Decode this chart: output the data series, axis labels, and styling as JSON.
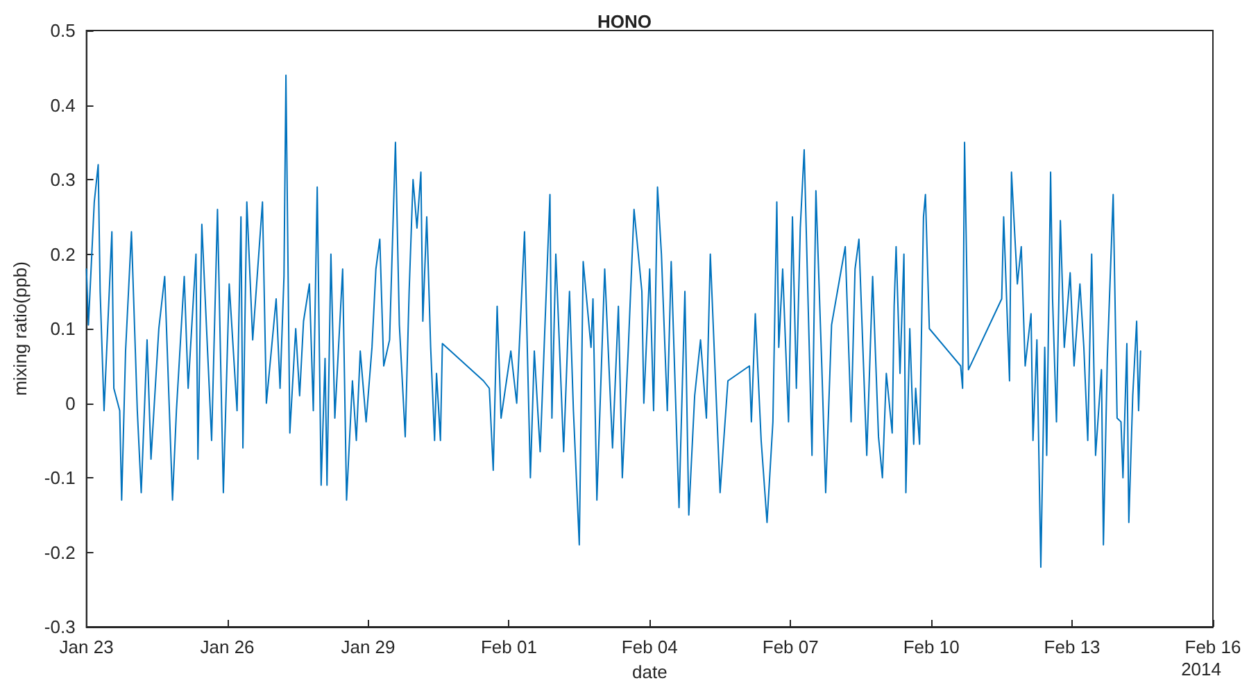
{
  "chart_data": {
    "type": "line",
    "title": "HONO",
    "xlabel": "date",
    "ylabel": "mixing ratio(ppb)",
    "annotations": [
      "2014"
    ],
    "x": [
      "2014-01-23T00:00",
      "2014-01-23T01:00",
      "2014-01-23T04:00",
      "2014-01-23T06:00",
      "2014-01-23T07:00",
      "2014-01-23T09:00",
      "2014-01-23T13:00",
      "2014-01-23T14:00",
      "2014-01-23T17:00",
      "2014-01-23T18:00",
      "2014-01-23T20:00",
      "2014-01-23T23:00",
      "2014-01-24T02:00",
      "2014-01-24T04:00",
      "2014-01-24T07:00",
      "2014-01-24T09:00",
      "2014-01-24T13:00",
      "2014-01-24T16:00",
      "2014-01-24T20:00",
      "2014-01-24T22:00",
      "2014-01-25T02:00",
      "2014-01-25T04:00",
      "2014-01-25T08:00",
      "2014-01-25T09:00",
      "2014-01-25T11:00",
      "2014-01-25T16:00",
      "2014-01-25T19:00",
      "2014-01-25T22:00",
      "2014-01-26T01:00",
      "2014-01-26T05:00",
      "2014-01-26T07:00",
      "2014-01-26T08:00",
      "2014-01-26T10:00",
      "2014-01-26T13:00",
      "2014-01-26T18:00",
      "2014-01-26T20:00",
      "2014-01-27T01:00",
      "2014-01-27T03:00",
      "2014-01-27T05:00",
      "2014-01-27T06:00",
      "2014-01-27T08:00",
      "2014-01-27T11:00",
      "2014-01-27T13:00",
      "2014-01-27T15:00",
      "2014-01-27T18:00",
      "2014-01-27T20:00",
      "2014-01-27T22:00",
      "2014-01-28T00:00",
      "2014-01-28T02:00",
      "2014-01-28T03:00",
      "2014-01-28T05:00",
      "2014-01-28T07:00",
      "2014-01-28T11:00",
      "2014-01-28T13:00",
      "2014-01-28T16:00",
      "2014-01-28T18:00",
      "2014-01-28T20:00",
      "2014-01-28T23:00",
      "2014-01-29T02:00",
      "2014-01-29T04:00",
      "2014-01-29T06:00",
      "2014-01-29T08:00",
      "2014-01-29T11:00",
      "2014-01-29T14:00",
      "2014-01-29T16:00",
      "2014-01-29T19:00",
      "2014-01-29T21:00",
      "2014-01-29T23:00",
      "2014-01-30T01:00",
      "2014-01-30T03:00",
      "2014-01-30T04:00",
      "2014-01-30T06:00",
      "2014-01-30T08:00",
      "2014-01-30T10:00",
      "2014-01-30T11:00",
      "2014-01-30T13:00",
      "2014-01-30T14:00",
      "2014-01-31T11:00",
      "2014-01-31T14:00",
      "2014-01-31T16:00",
      "2014-01-31T18:00",
      "2014-01-31T20:00",
      "2014-02-01T01:00",
      "2014-02-01T04:00",
      "2014-02-01T08:00",
      "2014-02-01T11:00",
      "2014-02-01T13:00",
      "2014-02-01T16:00",
      "2014-02-01T21:00",
      "2014-02-01T22:00",
      "2014-02-02T00:00",
      "2014-02-02T04:00",
      "2014-02-02T07:00",
      "2014-02-02T09:00",
      "2014-02-02T12:00",
      "2014-02-02T14:00",
      "2014-02-02T18:00",
      "2014-02-02T19:00",
      "2014-02-02T21:00",
      "2014-02-03T01:00",
      "2014-02-03T05:00",
      "2014-02-03T08:00",
      "2014-02-03T10:00",
      "2014-02-03T13:00",
      "2014-02-03T16:00",
      "2014-02-03T20:00",
      "2014-02-03T21:00",
      "2014-02-04T00:00",
      "2014-02-04T02:00",
      "2014-02-04T04:00",
      "2014-02-04T06:00",
      "2014-02-04T09:00",
      "2014-02-04T11:00",
      "2014-02-04T15:00",
      "2014-02-04T18:00",
      "2014-02-04T20:00",
      "2014-02-04T23:00",
      "2014-02-05T02:00",
      "2014-02-05T05:00",
      "2014-02-05T07:00",
      "2014-02-05T12:00",
      "2014-02-05T16:00",
      "2014-02-06T03:00",
      "2014-02-06T04:00",
      "2014-02-06T06:00",
      "2014-02-06T09:00",
      "2014-02-06T12:00",
      "2014-02-06T15:00",
      "2014-02-06T17:00",
      "2014-02-06T18:00",
      "2014-02-06T20:00",
      "2014-02-06T23:00",
      "2014-02-07T01:00",
      "2014-02-07T03:00",
      "2014-02-07T05:00",
      "2014-02-07T07:00",
      "2014-02-07T11:00",
      "2014-02-07T13:00",
      "2014-02-07T16:00",
      "2014-02-07T18:00",
      "2014-02-07T21:00",
      "2014-02-08T04:00",
      "2014-02-08T07:00",
      "2014-02-08T09:00",
      "2014-02-08T11:00",
      "2014-02-08T13:00",
      "2014-02-08T15:00",
      "2014-02-08T18:00",
      "2014-02-08T21:00",
      "2014-02-08T23:00",
      "2014-02-09T01:00",
      "2014-02-09T04:00",
      "2014-02-09T05:00",
      "2014-02-09T06:00",
      "2014-02-09T08:00",
      "2014-02-09T10:00",
      "2014-02-09T11:00",
      "2014-02-09T13:00",
      "2014-02-09T15:00",
      "2014-02-09T16:00",
      "2014-02-09T18:00",
      "2014-02-09T20:00",
      "2014-02-09T21:00",
      "2014-02-09T23:00",
      "2014-02-10T15:00",
      "2014-02-10T16:00",
      "2014-02-10T17:00",
      "2014-02-10T19:00",
      "2014-02-11T12:00",
      "2014-02-11T13:00",
      "2014-02-11T16:00",
      "2014-02-11T17:00",
      "2014-02-11T20:00",
      "2014-02-11T22:00",
      "2014-02-12T00:00",
      "2014-02-12T03:00",
      "2014-02-12T04:00",
      "2014-02-12T06:00",
      "2014-02-12T08:00",
      "2014-02-12T10:00",
      "2014-02-12T11:00",
      "2014-02-12T13:00",
      "2014-02-12T14:00",
      "2014-02-12T16:00",
      "2014-02-12T18:00",
      "2014-02-12T20:00",
      "2014-02-12T23:00",
      "2014-02-13T01:00",
      "2014-02-13T04:00",
      "2014-02-13T06:00",
      "2014-02-13T08:00",
      "2014-02-13T10:00",
      "2014-02-13T12:00",
      "2014-02-13T15:00",
      "2014-02-13T16:00",
      "2014-02-13T18:00",
      "2014-02-13T21:00",
      "2014-02-13T23:00",
      "2014-02-14T01:00",
      "2014-02-14T02:00",
      "2014-02-14T04:00",
      "2014-02-14T05:00",
      "2014-02-14T07:00",
      "2014-02-14T09:00",
      "2014-02-14T10:00",
      "2014-02-14T11:00"
    ],
    "series": [
      {
        "color": "#0072bd",
        "values": [
          0.18,
          0.105,
          0.27,
          0.32,
          0.15,
          -0.01,
          0.23,
          0.02,
          -0.01,
          -0.13,
          0.07,
          0.23,
          -0.01,
          -0.12,
          0.085,
          -0.075,
          0.1,
          0.17,
          -0.13,
          -0.01,
          0.17,
          0.02,
          0.2,
          -0.075,
          0.24,
          -0.05,
          0.26,
          -0.12,
          0.16,
          -0.01,
          0.25,
          -0.06,
          0.27,
          0.085,
          0.27,
          0.0,
          0.14,
          0.02,
          0.17,
          0.44,
          -0.04,
          0.1,
          0.01,
          0.11,
          0.16,
          -0.01,
          0.29,
          -0.11,
          0.06,
          -0.11,
          0.2,
          -0.02,
          0.18,
          -0.13,
          0.03,
          -0.05,
          0.07,
          -0.025,
          0.075,
          0.18,
          0.22,
          0.05,
          0.085,
          0.35,
          0.105,
          -0.045,
          0.15,
          0.3,
          0.235,
          0.31,
          0.11,
          0.25,
          0.075,
          -0.05,
          0.04,
          -0.05,
          0.08,
          0.03,
          0.02,
          -0.09,
          0.13,
          -0.02,
          0.07,
          0.0,
          0.23,
          -0.1,
          0.07,
          -0.065,
          0.28,
          -0.02,
          0.2,
          -0.065,
          0.15,
          -0.01,
          -0.19,
          0.19,
          0.075,
          0.14,
          -0.13,
          0.18,
          -0.06,
          0.13,
          -0.1,
          0.07,
          0.26,
          0.15,
          0.0,
          0.18,
          -0.01,
          0.29,
          0.2,
          -0.01,
          0.19,
          -0.14,
          0.15,
          -0.15,
          0.01,
          0.085,
          -0.02,
          0.2,
          -0.12,
          0.03,
          0.05,
          -0.025,
          0.12,
          -0.05,
          -0.16,
          -0.025,
          0.27,
          0.075,
          0.18,
          -0.025,
          0.25,
          0.02,
          0.235,
          0.34,
          -0.07,
          0.285,
          0.05,
          -0.12,
          0.105,
          0.21,
          -0.025,
          0.18,
          0.22,
          0.075,
          -0.07,
          0.17,
          -0.045,
          -0.1,
          0.04,
          -0.04,
          0.13,
          0.21,
          0.04,
          0.2,
          -0.12,
          0.1,
          -0.055,
          0.02,
          -0.055,
          0.25,
          0.28,
          0.1,
          0.05,
          0.02,
          0.35,
          0.045,
          0.14,
          0.25,
          0.03,
          0.31,
          0.16,
          0.21,
          0.05,
          0.12,
          -0.05,
          0.085,
          -0.22,
          0.075,
          -0.07,
          0.31,
          0.14,
          -0.025,
          0.245,
          0.075,
          0.175,
          0.05,
          0.16,
          0.075,
          -0.05,
          0.2,
          -0.07,
          0.045,
          -0.19,
          0.06,
          0.28,
          -0.02,
          -0.025,
          -0.1,
          0.08,
          -0.16,
          0.01,
          0.11,
          -0.01,
          0.07
        ]
      }
    ],
    "xlim": [
      "2014-01-23",
      "2014-02-16"
    ],
    "xticks": [
      {
        "value": "2014-01-23",
        "label": "Jan 23"
      },
      {
        "value": "2014-01-26",
        "label": "Jan 26"
      },
      {
        "value": "2014-01-29",
        "label": "Jan 29"
      },
      {
        "value": "2014-02-01",
        "label": "Feb 01"
      },
      {
        "value": "2014-02-04",
        "label": "Feb 04"
      },
      {
        "value": "2014-02-07",
        "label": "Feb 07"
      },
      {
        "value": "2014-02-10",
        "label": "Feb 10"
      },
      {
        "value": "2014-02-13",
        "label": "Feb 13"
      },
      {
        "value": "2014-02-16",
        "label": "Feb 16"
      }
    ],
    "ylim": [
      -0.3,
      0.5
    ],
    "yticks": [
      -0.3,
      -0.2,
      -0.1,
      0,
      0.1,
      0.2,
      0.3,
      0.4,
      0.5
    ],
    "marker": "none",
    "line_style": "solid"
  }
}
